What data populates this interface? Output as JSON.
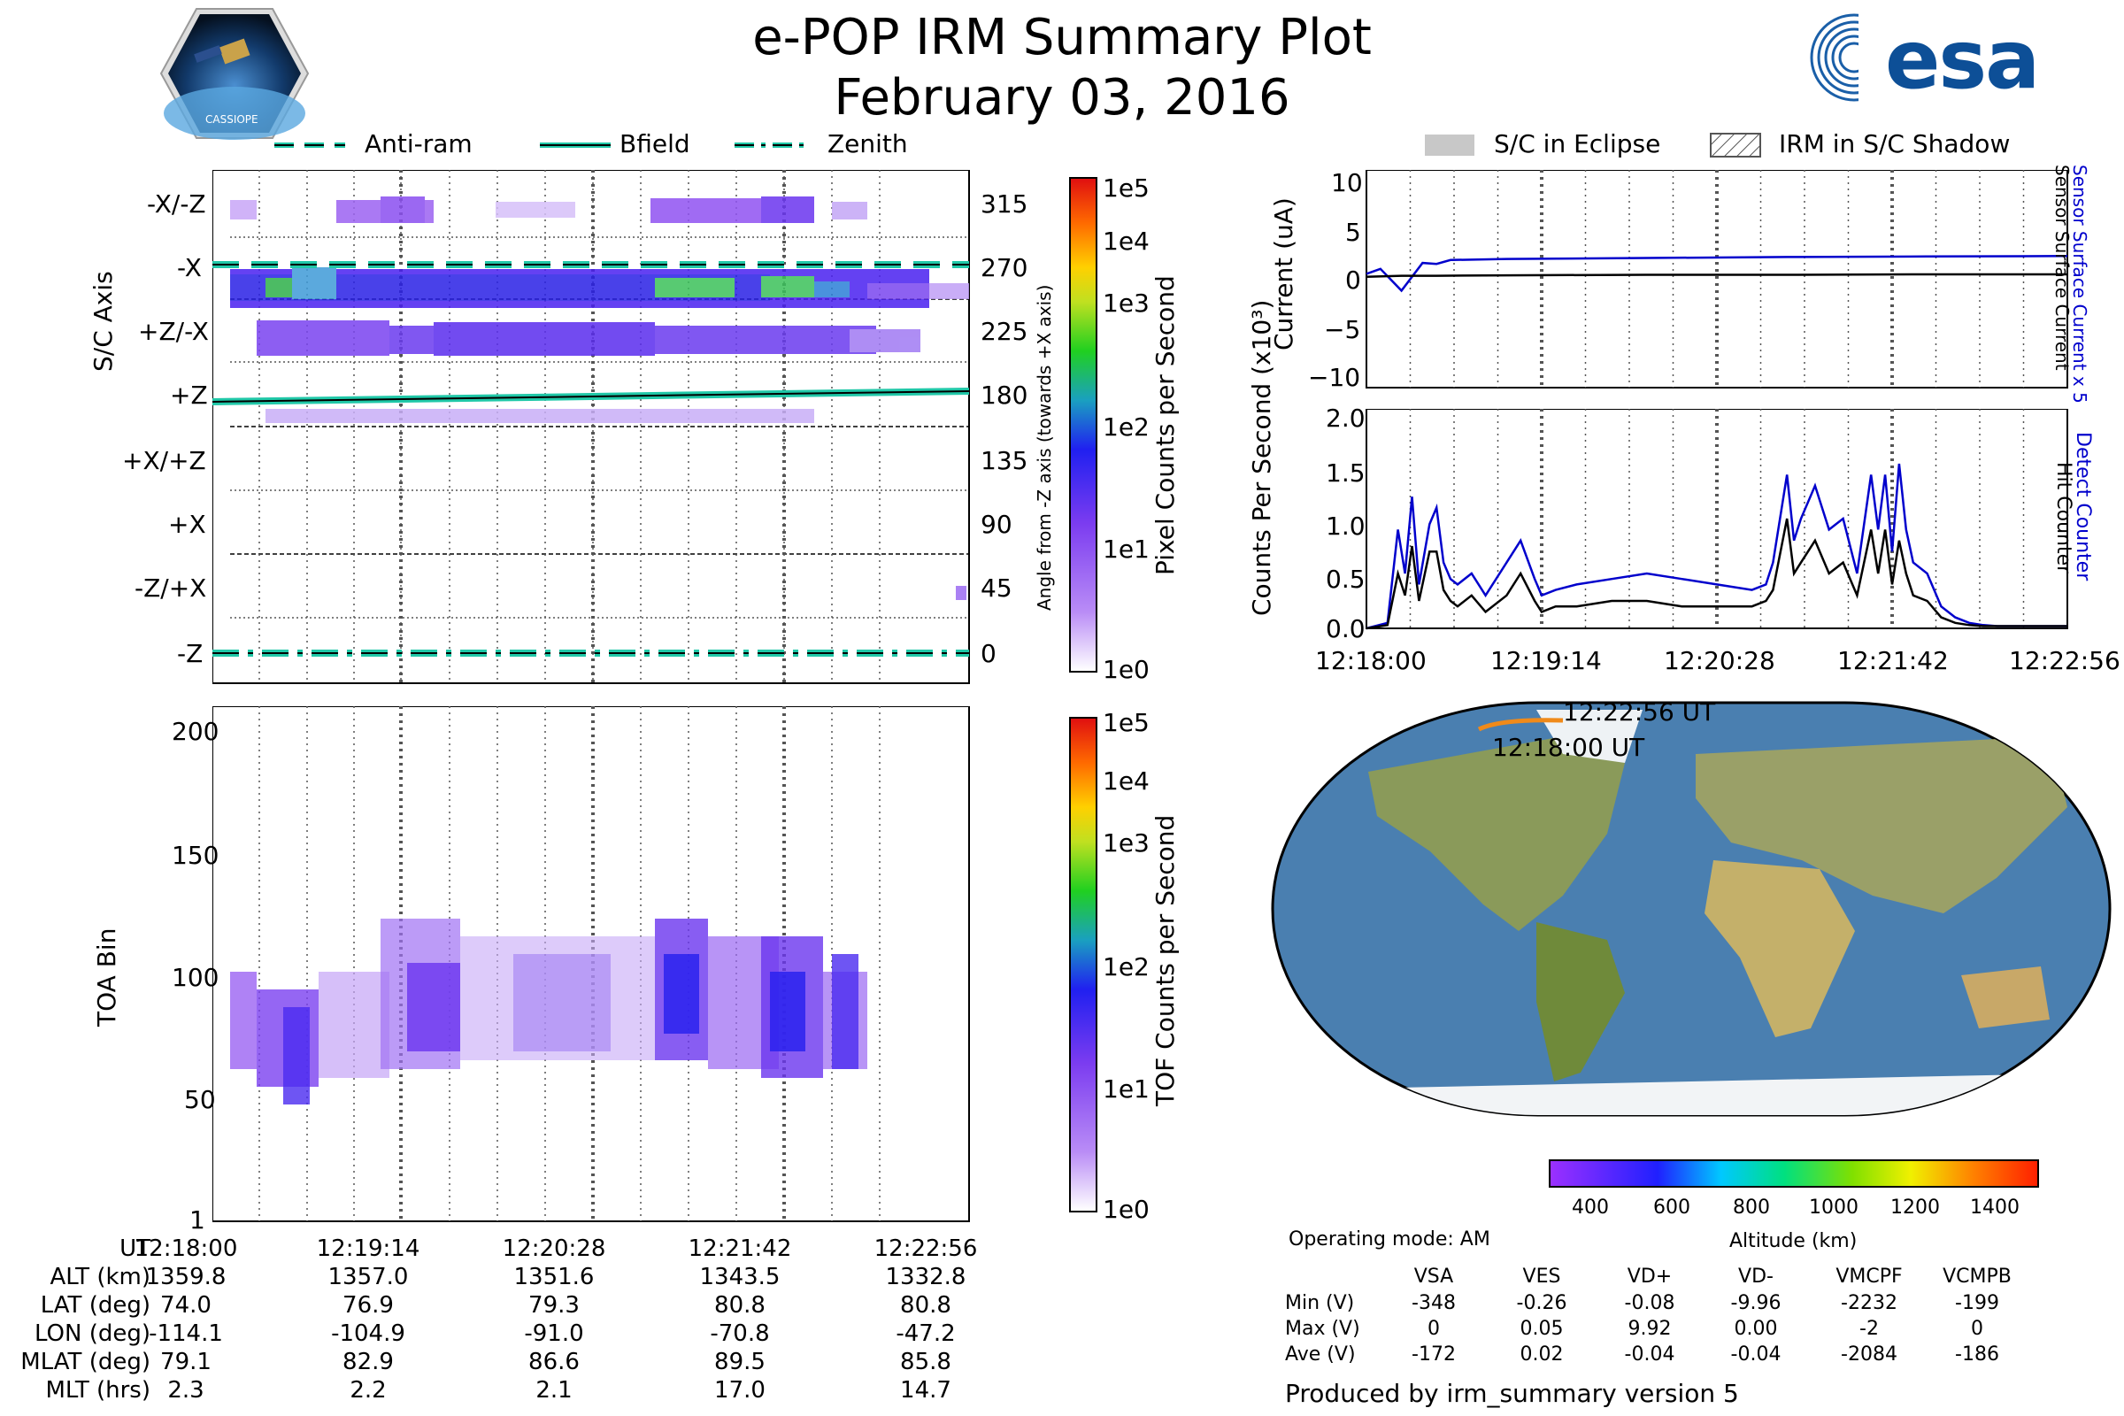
{
  "header": {
    "title": "e-POP IRM Summary Plot",
    "date": "February 03, 2016",
    "logo_left": "CASSIOPE",
    "logo_right": "esa"
  },
  "legend_top": {
    "items": [
      "Anti-ram",
      "Bfield",
      "Zenith"
    ],
    "colors": {
      "line": "#20c8a8",
      "core": "#000000"
    }
  },
  "legend_right": {
    "items": [
      "S/C in Eclipse",
      "IRM in S/C Shadow"
    ]
  },
  "panel_axis": {
    "ylabel": "S/C Axis",
    "ylabel_right": "Angle from -Z axis (towards +X axis)",
    "axis_labels": [
      "-X/-Z",
      "-X",
      "+Z/-X",
      "+Z",
      "+X/+Z",
      "+X",
      "-Z/+X",
      "-Z"
    ],
    "angle_ticks": [
      "315",
      "270",
      "225",
      "180",
      "135",
      "90",
      "45",
      "0"
    ],
    "colorbar_label": "Pixel Counts per Second",
    "colorbar_ticks": [
      "1e5",
      "1e4",
      "1e3",
      "1e2",
      "1e1",
      "1e0"
    ]
  },
  "panel_toa": {
    "ylabel": "TOA Bin",
    "yticks": [
      "200",
      "150",
      "100",
      "50",
      "1"
    ],
    "colorbar_label": "TOF Counts per Second",
    "colorbar_ticks": [
      "1e5",
      "1e4",
      "1e3",
      "1e2",
      "1e1",
      "1e0"
    ]
  },
  "chart_data": [
    {
      "type": "line",
      "ylabel": "Current (uA)",
      "ylim": [
        -11,
        11
      ],
      "yticks": [
        "10",
        "5",
        "0",
        "−5",
        "−10"
      ],
      "right_labels": [
        "Sensor Surface Current x 5",
        "Sensor Surface Current"
      ],
      "series": [
        {
          "name": "Sensor Surface Current x 5",
          "color": "#0000cc",
          "x": [
            0,
            0.02,
            0.05,
            0.08,
            0.1,
            0.12,
            0.2,
            0.4,
            0.6,
            0.8,
            1.0
          ],
          "values": [
            0.5,
            1,
            -1.2,
            1.6,
            1.5,
            1.9,
            2.0,
            2.1,
            2.2,
            2.25,
            2.3
          ]
        },
        {
          "name": "Sensor Surface Current",
          "color": "#000000",
          "x": [
            0,
            0.05,
            0.1,
            0.2,
            0.4,
            0.6,
            0.8,
            1.0
          ],
          "values": [
            0.2,
            0.3,
            0.3,
            0.35,
            0.4,
            0.4,
            0.45,
            0.45
          ]
        }
      ]
    },
    {
      "type": "line",
      "ylabel": "Counts Per Second (x10³)",
      "ylim": [
        0,
        2.0
      ],
      "yticks": [
        "2.0",
        "1.5",
        "1.0",
        "0.5",
        "0.0"
      ],
      "xticks": [
        "12:18:00",
        "12:19:14",
        "12:20:28",
        "12:21:42",
        "12:22:56"
      ],
      "right_labels": [
        "Detect Counter",
        "Hit Counter"
      ],
      "series": [
        {
          "name": "Detect Counter",
          "color": "#0000cc",
          "x": [
            0,
            0.03,
            0.045,
            0.055,
            0.065,
            0.075,
            0.09,
            0.1,
            0.11,
            0.12,
            0.13,
            0.15,
            0.17,
            0.2,
            0.22,
            0.24,
            0.25,
            0.27,
            0.3,
            0.35,
            0.4,
            0.45,
            0.5,
            0.55,
            0.57,
            0.58,
            0.6,
            0.61,
            0.62,
            0.64,
            0.66,
            0.68,
            0.7,
            0.72,
            0.73,
            0.74,
            0.75,
            0.76,
            0.77,
            0.78,
            0.8,
            0.82,
            0.84,
            0.86,
            0.88,
            0.9,
            0.95,
            1.0
          ],
          "values": [
            0,
            0.05,
            0.9,
            0.5,
            1.2,
            0.4,
            0.95,
            1.1,
            0.6,
            0.45,
            0.4,
            0.5,
            0.3,
            0.6,
            0.8,
            0.45,
            0.3,
            0.35,
            0.4,
            0.45,
            0.5,
            0.45,
            0.4,
            0.35,
            0.4,
            0.6,
            1.4,
            0.8,
            1.0,
            1.3,
            0.9,
            1.0,
            0.5,
            1.4,
            0.9,
            1.4,
            0.7,
            1.5,
            0.9,
            0.6,
            0.5,
            0.2,
            0.1,
            0.05,
            0.03,
            0.02,
            0.02,
            0.02
          ]
        },
        {
          "name": "Hit Counter",
          "color": "#000000",
          "x": [
            0,
            0.03,
            0.045,
            0.055,
            0.065,
            0.075,
            0.09,
            0.1,
            0.11,
            0.12,
            0.13,
            0.15,
            0.17,
            0.2,
            0.22,
            0.24,
            0.25,
            0.27,
            0.3,
            0.35,
            0.4,
            0.45,
            0.5,
            0.55,
            0.57,
            0.58,
            0.6,
            0.61,
            0.62,
            0.64,
            0.66,
            0.68,
            0.7,
            0.72,
            0.73,
            0.74,
            0.75,
            0.76,
            0.77,
            0.78,
            0.8,
            0.82,
            0.84,
            0.86,
            0.88,
            0.9,
            0.95,
            1.0
          ],
          "values": [
            0,
            0.03,
            0.5,
            0.3,
            0.75,
            0.25,
            0.7,
            0.7,
            0.35,
            0.25,
            0.2,
            0.3,
            0.15,
            0.3,
            0.5,
            0.25,
            0.15,
            0.2,
            0.2,
            0.25,
            0.25,
            0.2,
            0.2,
            0.2,
            0.25,
            0.35,
            1.0,
            0.5,
            0.6,
            0.8,
            0.5,
            0.6,
            0.3,
            0.9,
            0.5,
            0.9,
            0.4,
            0.8,
            0.5,
            0.3,
            0.25,
            0.1,
            0.05,
            0.03,
            0.02,
            0.02,
            0.02,
            0.02
          ]
        }
      ]
    }
  ],
  "map": {
    "track_start": "12:18:00 UT",
    "track_end": "12:22:56 UT",
    "altitude_label": "Altitude (km)",
    "altitude_ticks": [
      "400",
      "600",
      "800",
      "1000",
      "1200",
      "1400"
    ]
  },
  "ephemeris": {
    "rows": [
      {
        "label": "UT",
        "values": [
          "12:18:00",
          "12:19:14",
          "12:20:28",
          "12:21:42",
          "12:22:56"
        ]
      },
      {
        "label": "ALT (km)",
        "values": [
          "1359.8",
          "1357.0",
          "1351.6",
          "1343.5",
          "1332.8"
        ]
      },
      {
        "label": "LAT (deg)",
        "values": [
          "74.0",
          "76.9",
          "79.3",
          "80.8",
          "80.8"
        ]
      },
      {
        "label": "LON (deg)",
        "values": [
          "-114.1",
          "-104.9",
          "-91.0",
          "-70.8",
          "-47.2"
        ]
      },
      {
        "label": "MLAT (deg)",
        "values": [
          "79.1",
          "82.9",
          "86.6",
          "89.5",
          "85.8"
        ]
      },
      {
        "label": "MLT (hrs)",
        "values": [
          "2.3",
          "2.2",
          "2.1",
          "17.0",
          "14.7"
        ]
      }
    ]
  },
  "voltages": {
    "mode": "Operating mode: AM",
    "columns": [
      "VSA",
      "VES",
      "VD+",
      "VD-",
      "VMCPF",
      "VCMPB"
    ],
    "rows": [
      {
        "label": "Min (V)",
        "values": [
          "-348",
          "-0.26",
          "-0.08",
          "-9.96",
          "-2232",
          "-199"
        ]
      },
      {
        "label": "Max (V)",
        "values": [
          "0",
          "0.05",
          "9.92",
          "0.00",
          "-2",
          "0"
        ]
      },
      {
        "label": "Ave (V)",
        "values": [
          "-172",
          "0.02",
          "-0.04",
          "-0.04",
          "-2084",
          "-186"
        ]
      }
    ],
    "footer": "Produced by irm_summary version 5"
  }
}
